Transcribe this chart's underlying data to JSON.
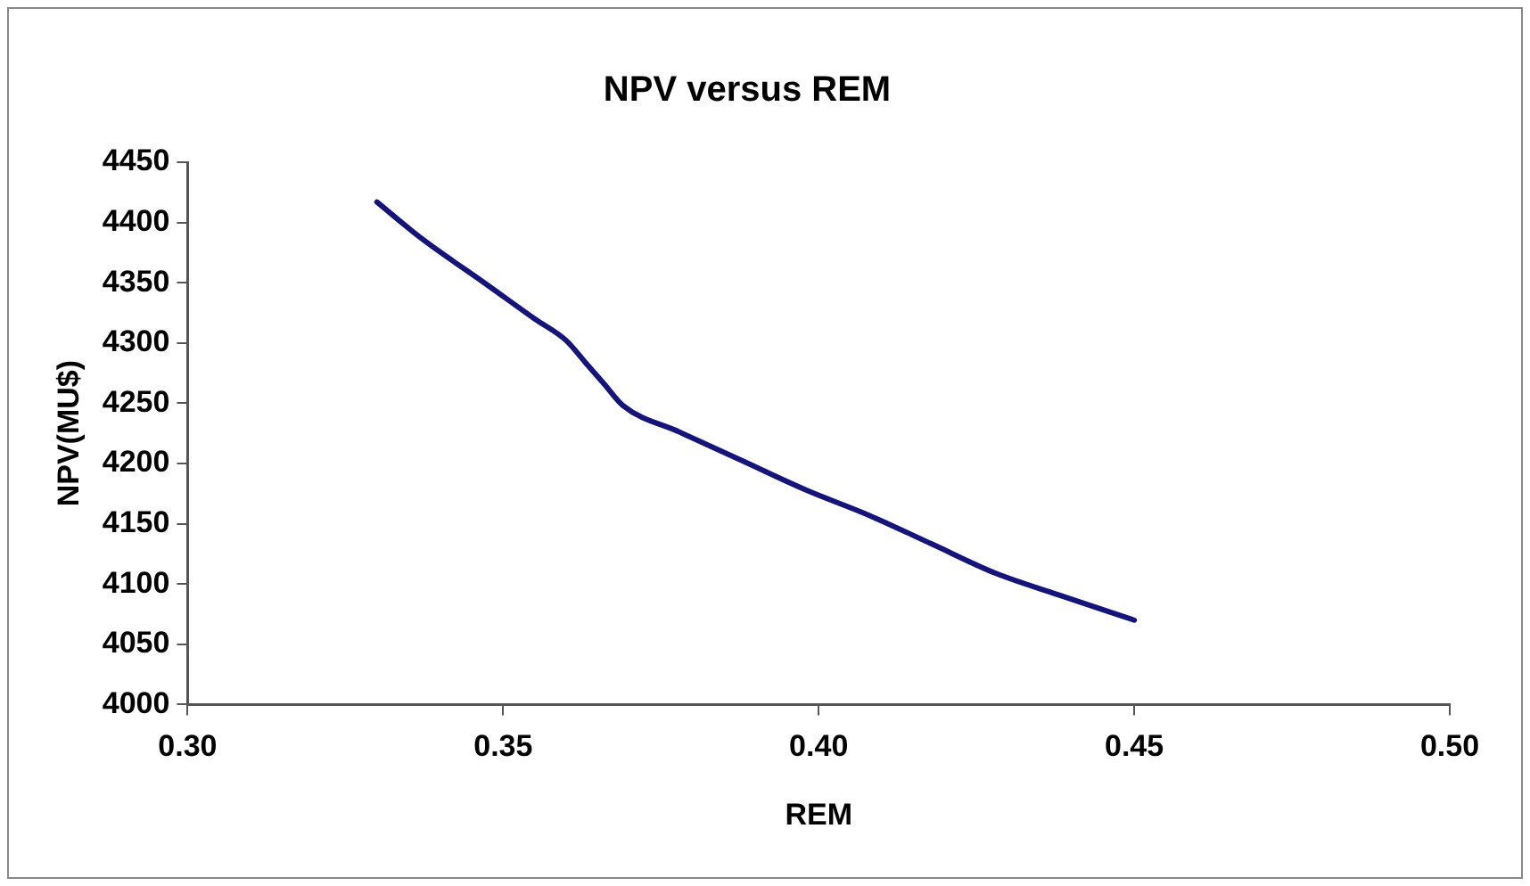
{
  "chart_data": {
    "type": "line",
    "title": "NPV versus REM",
    "xlabel": "REM",
    "ylabel": "NPV(MU$)",
    "x": [
      0.33,
      0.337,
      0.347,
      0.355,
      0.36,
      0.363,
      0.366,
      0.369,
      0.378,
      0.388,
      0.398,
      0.408,
      0.418,
      0.428,
      0.438,
      0.45
    ],
    "series": [
      {
        "color": "#14147a",
        "values": [
          4417,
          4387,
          4350,
          4320,
          4302,
          4284,
          4266,
          4248,
          4226,
          4202,
          4178,
          4157,
          4133,
          4109,
          4091,
          4070
        ]
      }
    ],
    "xlim": [
      0.3,
      0.5
    ],
    "xticks": [
      {
        "value": 0.3,
        "label": "0.30"
      },
      {
        "value": 0.35,
        "label": "0.35"
      },
      {
        "value": 0.4,
        "label": "0.40"
      },
      {
        "value": 0.45,
        "label": "0.45"
      },
      {
        "value": 0.5,
        "label": "0.50"
      }
    ],
    "ylim": [
      4000,
      4450
    ],
    "yticks": [
      4000,
      4050,
      4100,
      4150,
      4200,
      4250,
      4300,
      4350,
      4400,
      4450
    ],
    "grid": false,
    "legend": false,
    "marker": "none",
    "line_style": "solid"
  }
}
